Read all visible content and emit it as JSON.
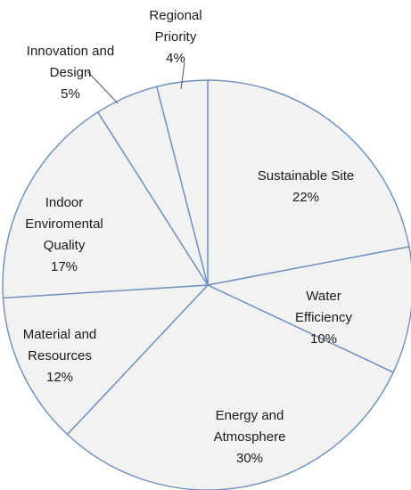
{
  "chart_data": {
    "type": "pie",
    "title": "",
    "slices": [
      {
        "name": "Sustainable Site",
        "value": 22,
        "label_lines": [
          "Sustainable Site",
          "22%"
        ]
      },
      {
        "name": "Water Efficiency",
        "value": 10,
        "label_lines": [
          "Water",
          "Efficiency",
          "10%"
        ]
      },
      {
        "name": "Energy and Atmosphere",
        "value": 30,
        "label_lines": [
          "Energy and",
          "Atmosphere",
          "30%"
        ]
      },
      {
        "name": "Material and Resources",
        "value": 12,
        "label_lines": [
          "Material and",
          "Resources",
          "12%"
        ]
      },
      {
        "name": "Indoor Enviromental Quality",
        "value": 17,
        "label_lines": [
          "Indoor",
          "Enviromental",
          "Quality",
          "17%"
        ]
      },
      {
        "name": "Innovation and Design",
        "value": 5,
        "label_lines": [
          "Innovation and",
          "Design",
          "5%"
        ]
      },
      {
        "name": "Regional Priority",
        "value": 4,
        "label_lines": [
          "Regional",
          "Priority",
          "4%"
        ]
      }
    ],
    "slice_fill": "#f2f2f2",
    "border_color": "#6f8dbd",
    "start_direction": "top",
    "order": "clockwise",
    "legend": "none"
  }
}
